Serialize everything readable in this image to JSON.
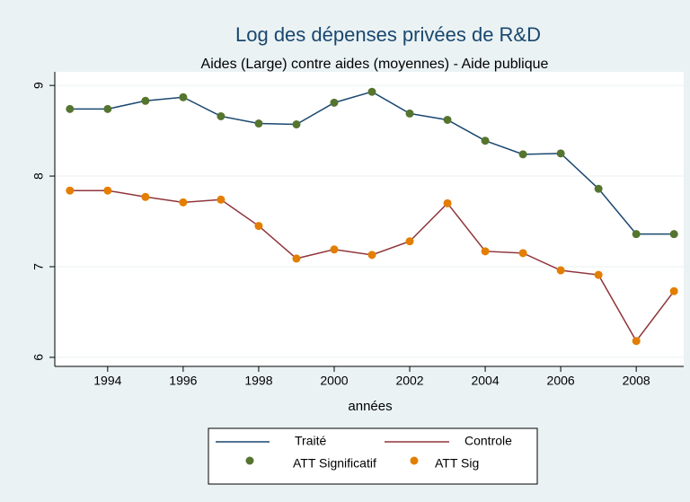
{
  "chart_data": {
    "type": "line",
    "title": "Log des dépenses privées de R&D",
    "subtitle": "Aides  (Large) contre aides (moyennes) - Aide publique",
    "x_label": "années",
    "x": [
      1993,
      1994,
      1995,
      1996,
      1997,
      1998,
      1999,
      2000,
      2001,
      2002,
      2003,
      2004,
      2005,
      2006,
      2007,
      2008,
      2009
    ],
    "series": [
      {
        "name": "Traité",
        "color": "#1a476f",
        "mode": "line",
        "values": [
          8.74,
          8.74,
          8.83,
          8.87,
          8.66,
          8.58,
          8.57,
          8.81,
          8.93,
          8.69,
          8.62,
          8.39,
          8.24,
          8.25,
          7.86,
          7.36,
          7.36
        ]
      },
      {
        "name": "Controle",
        "color": "#90353b",
        "mode": "line",
        "values": [
          7.84,
          7.84,
          7.77,
          7.71,
          7.74,
          7.45,
          7.09,
          7.19,
          7.13,
          7.28,
          7.7,
          7.17,
          7.15,
          6.96,
          6.91,
          6.18,
          6.73
        ]
      },
      {
        "name": "ATT Significatif",
        "color": "#55752f",
        "mode": "marker",
        "values": [
          8.74,
          8.74,
          8.83,
          8.87,
          8.66,
          8.58,
          8.57,
          8.81,
          8.93,
          8.69,
          8.62,
          8.39,
          8.24,
          8.25,
          7.86,
          7.36,
          7.36
        ]
      },
      {
        "name": "ATT Sig",
        "color": "#e37e00",
        "mode": "marker",
        "values": [
          7.84,
          7.84,
          7.77,
          7.71,
          7.74,
          7.45,
          7.09,
          7.19,
          7.13,
          7.28,
          7.7,
          7.17,
          7.15,
          6.96,
          6.91,
          6.18,
          6.73
        ]
      }
    ],
    "xlim": [
      1992.6,
      2009.4
    ],
    "xticks": [
      1994,
      1996,
      1998,
      2000,
      2002,
      2004,
      2006,
      2008
    ],
    "ylim": [
      5.9,
      9.15
    ],
    "yticks": [
      6,
      7,
      8,
      9
    ],
    "grid": true
  }
}
